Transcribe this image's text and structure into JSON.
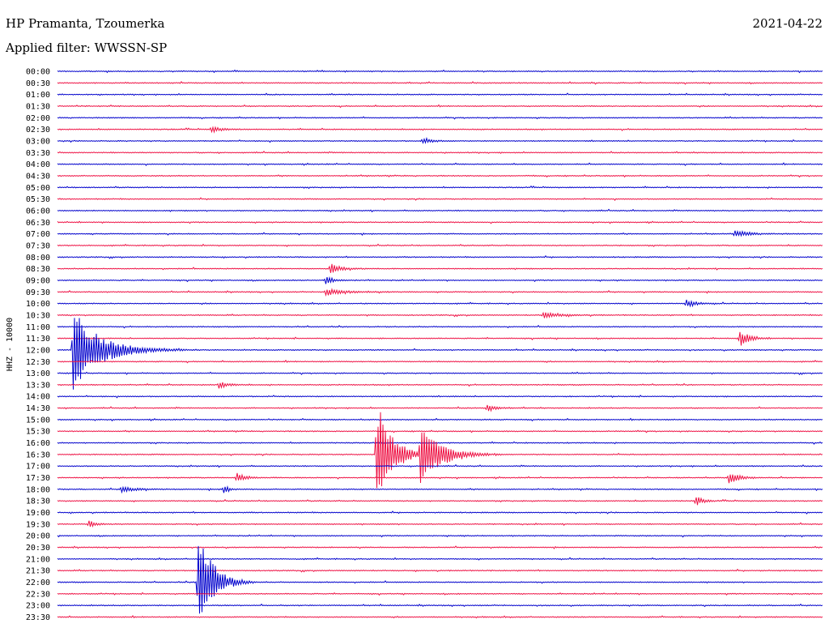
{
  "header": {
    "station": "HP Pramanta, Tzoumerka",
    "date": "2021-04-22",
    "filter": "Applied filter: WWSSN-SP"
  },
  "chart_data": {
    "type": "line",
    "channel_label": "HHZ - 10000",
    "colors": {
      "even": "#0000cc",
      "odd": "#ee1144"
    },
    "rows": [
      "00:00",
      "00:30",
      "01:00",
      "01:30",
      "02:00",
      "02:30",
      "03:00",
      "03:30",
      "04:00",
      "04:30",
      "05:00",
      "05:30",
      "06:00",
      "06:30",
      "07:00",
      "07:30",
      "08:00",
      "08:30",
      "09:00",
      "09:30",
      "10:00",
      "10:30",
      "11:00",
      "11:30",
      "12:00",
      "12:30",
      "13:00",
      "13:30",
      "14:00",
      "14:30",
      "15:00",
      "15:30",
      "16:00",
      "16:30",
      "17:00",
      "17:30",
      "18:00",
      "18:30",
      "19:00",
      "19:30",
      "20:00",
      "20:30",
      "21:00",
      "21:30",
      "22:00",
      "22:30",
      "23:00",
      "23:30"
    ],
    "events": [
      {
        "row": 24,
        "minute": 0.6,
        "amp": 3.6,
        "dur": 1.8
      },
      {
        "row": 33,
        "minute": 12.5,
        "amp": 5.0,
        "dur": 1.0
      },
      {
        "row": 33,
        "minute": 14.2,
        "amp": 3.0,
        "dur": 1.3
      },
      {
        "row": 44,
        "minute": 5.5,
        "amp": 5.5,
        "dur": 0.9
      },
      {
        "row": 23,
        "minute": 26.7,
        "amp": 0.8,
        "dur": 0.6
      },
      {
        "row": 35,
        "minute": 7.0,
        "amp": 0.5,
        "dur": 0.5
      },
      {
        "row": 35,
        "minute": 26.3,
        "amp": 0.6,
        "dur": 0.6
      },
      {
        "row": 37,
        "minute": 25.0,
        "amp": 0.5,
        "dur": 0.4
      },
      {
        "row": 36,
        "minute": 6.5,
        "amp": 0.5,
        "dur": 0.3
      },
      {
        "row": 17,
        "minute": 10.7,
        "amp": 0.5,
        "dur": 0.6
      },
      {
        "row": 29,
        "minute": 16.8,
        "amp": 0.4,
        "dur": 0.5
      },
      {
        "row": 39,
        "minute": 1.2,
        "amp": 0.4,
        "dur": 0.4
      },
      {
        "row": 27,
        "minute": 6.3,
        "amp": 0.3,
        "dur": 0.6
      },
      {
        "row": 20,
        "minute": 24.6,
        "amp": 0.4,
        "dur": 0.6
      },
      {
        "row": 6,
        "minute": 14.3,
        "amp": 0.3,
        "dur": 0.5
      },
      {
        "row": 14,
        "minute": 26.5,
        "amp": 0.3,
        "dur": 1.0
      },
      {
        "row": 5,
        "minute": 6.0,
        "amp": 0.3,
        "dur": 0.6
      },
      {
        "row": 21,
        "minute": 19.0,
        "amp": 0.3,
        "dur": 1.0
      },
      {
        "row": 19,
        "minute": 10.5,
        "amp": 0.3,
        "dur": 1.2
      },
      {
        "row": 18,
        "minute": 10.5,
        "amp": 0.4,
        "dur": 0.5
      },
      {
        "row": 36,
        "minute": 2.5,
        "amp": 0.3,
        "dur": 0.8
      }
    ]
  }
}
